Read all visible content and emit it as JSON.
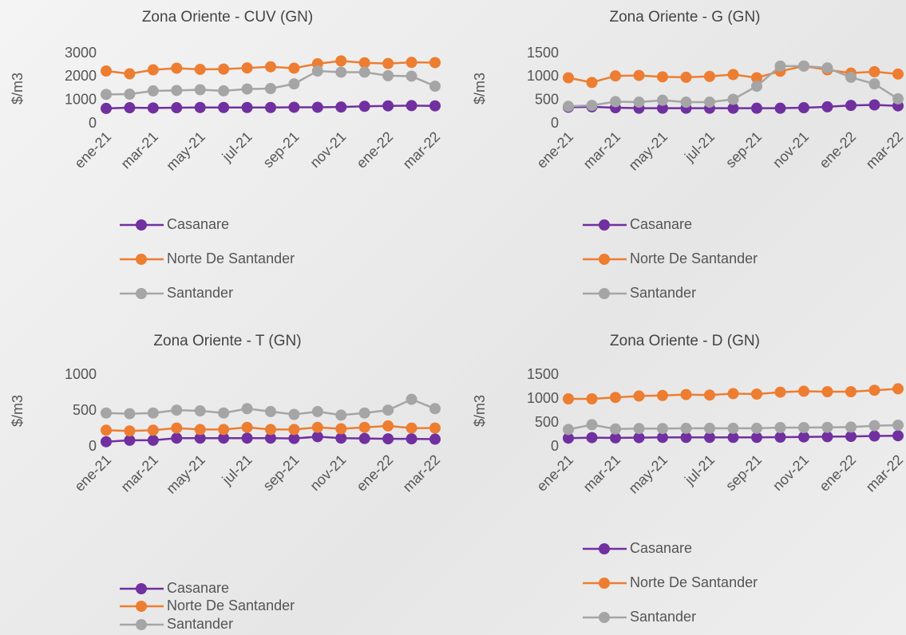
{
  "chart_data": [
    {
      "type": "line",
      "title": "Zona Oriente - CUV (GN)",
      "y_label": "$/m3",
      "categories": [
        "ene-21",
        null,
        "mar-21",
        null,
        "may-21",
        null,
        "jul-21",
        null,
        "sep-21",
        null,
        "nov-21",
        null,
        "ene-22",
        null,
        "mar-22"
      ],
      "ylim": [
        0,
        3000
      ],
      "yticks": [
        0,
        1000,
        2000,
        3000
      ],
      "series": [
        {
          "name": "Casanare",
          "color": "#7030a0",
          "values": [
            650,
            680,
            670,
            680,
            690,
            690,
            690,
            690,
            700,
            700,
            710,
            740,
            760,
            770,
            760
          ]
        },
        {
          "name": "Norte De Santander",
          "color": "#ed7d31",
          "values": [
            2250,
            2130,
            2300,
            2370,
            2320,
            2330,
            2380,
            2430,
            2370,
            2560,
            2680,
            2600,
            2570,
            2620,
            2610
          ]
        },
        {
          "name": "Santander",
          "color": "#a5a5a5",
          "values": [
            1250,
            1260,
            1400,
            1420,
            1450,
            1400,
            1480,
            1500,
            1700,
            2250,
            2200,
            2200,
            2050,
            2030,
            1600
          ]
        }
      ]
    },
    {
      "type": "line",
      "title": "Zona Oriente - G (GN)",
      "y_label": "$/m3",
      "categories": [
        "ene-21",
        null,
        "mar-21",
        null,
        "may-21",
        null,
        "jul-21",
        null,
        "sep-21",
        null,
        "nov-21",
        null,
        "ene-22",
        null,
        "mar-22"
      ],
      "ylim": [
        0,
        1500
      ],
      "yticks": [
        0,
        500,
        1000,
        1500
      ],
      "series": [
        {
          "name": "Casanare",
          "color": "#7030a0",
          "values": [
            350,
            360,
            340,
            330,
            330,
            330,
            330,
            330,
            330,
            330,
            340,
            360,
            390,
            400,
            380
          ]
        },
        {
          "name": "Norte De Santander",
          "color": "#ed7d31",
          "values": [
            980,
            880,
            1020,
            1030,
            1000,
            990,
            1010,
            1050,
            980,
            1120,
            1230,
            1150,
            1080,
            1110,
            1060
          ]
        },
        {
          "name": "Santander",
          "color": "#a5a5a5",
          "values": [
            370,
            390,
            470,
            460,
            500,
            460,
            460,
            520,
            800,
            1230,
            1230,
            1190,
            990,
            850,
            530
          ]
        }
      ]
    },
    {
      "type": "line",
      "title": "Zona Oriente - T (GN)",
      "y_label": "$/m3",
      "categories": [
        "ene-21",
        null,
        "mar-21",
        null,
        "may-21",
        null,
        "jul-21",
        null,
        "sep-21",
        null,
        "nov-21",
        null,
        "ene-22",
        null,
        "mar-22"
      ],
      "ylim": [
        0,
        1000
      ],
      "yticks": [
        0,
        500,
        1000
      ],
      "series": [
        {
          "name": "Casanare",
          "color": "#7030a0",
          "values": [
            70,
            90,
            90,
            120,
            120,
            120,
            120,
            120,
            115,
            140,
            120,
            115,
            110,
            110,
            105
          ]
        },
        {
          "name": "Norte De Santander",
          "color": "#ed7d31",
          "values": [
            230,
            220,
            230,
            260,
            240,
            240,
            270,
            240,
            240,
            270,
            250,
            270,
            290,
            260,
            260
          ]
        },
        {
          "name": "Santander",
          "color": "#a5a5a5",
          "values": [
            470,
            460,
            470,
            510,
            500,
            470,
            530,
            490,
            450,
            490,
            440,
            470,
            510,
            660,
            530
          ]
        }
      ]
    },
    {
      "type": "line",
      "title": "Zona Oriente - D (GN)",
      "y_label": "$/m3",
      "categories": [
        "ene-21",
        null,
        "mar-21",
        null,
        "may-21",
        null,
        "jul-21",
        null,
        "sep-21",
        null,
        "nov-21",
        null,
        "ene-22",
        null,
        "mar-22"
      ],
      "ylim": [
        0,
        1500
      ],
      "yticks": [
        0,
        500,
        1000,
        1500
      ],
      "series": [
        {
          "name": "Casanare",
          "color": "#7030a0",
          "values": [
            180,
            190,
            185,
            190,
            195,
            195,
            195,
            195,
            195,
            200,
            205,
            210,
            215,
            225,
            230
          ]
        },
        {
          "name": "Norte De Santander",
          "color": "#ed7d31",
          "values": [
            1000,
            1000,
            1030,
            1060,
            1070,
            1090,
            1080,
            1110,
            1100,
            1140,
            1160,
            1150,
            1150,
            1180,
            1210
          ]
        },
        {
          "name": "Santander",
          "color": "#a5a5a5",
          "values": [
            360,
            460,
            370,
            380,
            380,
            385,
            385,
            385,
            385,
            400,
            400,
            405,
            410,
            440,
            450
          ]
        }
      ]
    }
  ]
}
